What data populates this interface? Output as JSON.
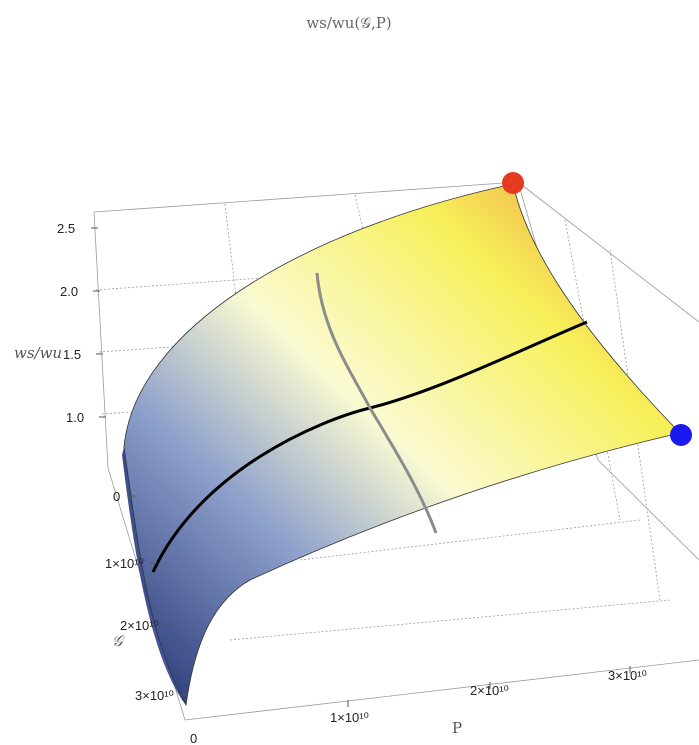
{
  "chart_data": {
    "type": "surface3d",
    "title": "ws/wu(𝒢,P)",
    "xlabel": "P",
    "ylabel": "𝒢",
    "zlabel": "ws/wu",
    "x_ticks": [
      "0",
      "1×10¹⁰",
      "2×10¹⁰",
      "3×10¹⁰"
    ],
    "y_ticks": [
      "0",
      "1×10¹⁰",
      "2×10¹⁰",
      "3×10¹⁰"
    ],
    "z_ticks": [
      "1.0",
      "1.5",
      "2.0",
      "2.5"
    ],
    "x_range": [
      0,
      36000000000
    ],
    "y_range": [
      0,
      32000000000
    ],
    "z_range": [
      0.6,
      2.7
    ],
    "surface_corners": [
      {
        "P": 0,
        "G": 0,
        "ratio": 0.75
      },
      {
        "P": 0,
        "G": 31000000000,
        "ratio": 0.8
      },
      {
        "P": 36000000000,
        "G": 0,
        "ratio": 2.65
      },
      {
        "P": 36000000000,
        "G": 31000000000,
        "ratio": 0.92
      }
    ],
    "highlighted_points": [
      {
        "name": "red-point",
        "P": 36000000000,
        "G": 0,
        "ratio": 2.65,
        "color": "#e53a1f"
      },
      {
        "name": "blue-point",
        "P": 36000000000,
        "G": 31000000000,
        "ratio": 0.92,
        "color": "#1a1aee"
      }
    ],
    "curves": [
      {
        "name": "black-curve",
        "along": "P",
        "at_G": 15000000000,
        "color": "#000000"
      },
      {
        "name": "gray-curve",
        "along": "G",
        "at_P": 17000000000,
        "color": "#8c8c8c"
      }
    ],
    "colors": {
      "low": "#1d2d6e",
      "mid": "#fafad2",
      "high_mid": "#f7f05a",
      "high": "#c8401a"
    },
    "grid": true
  }
}
